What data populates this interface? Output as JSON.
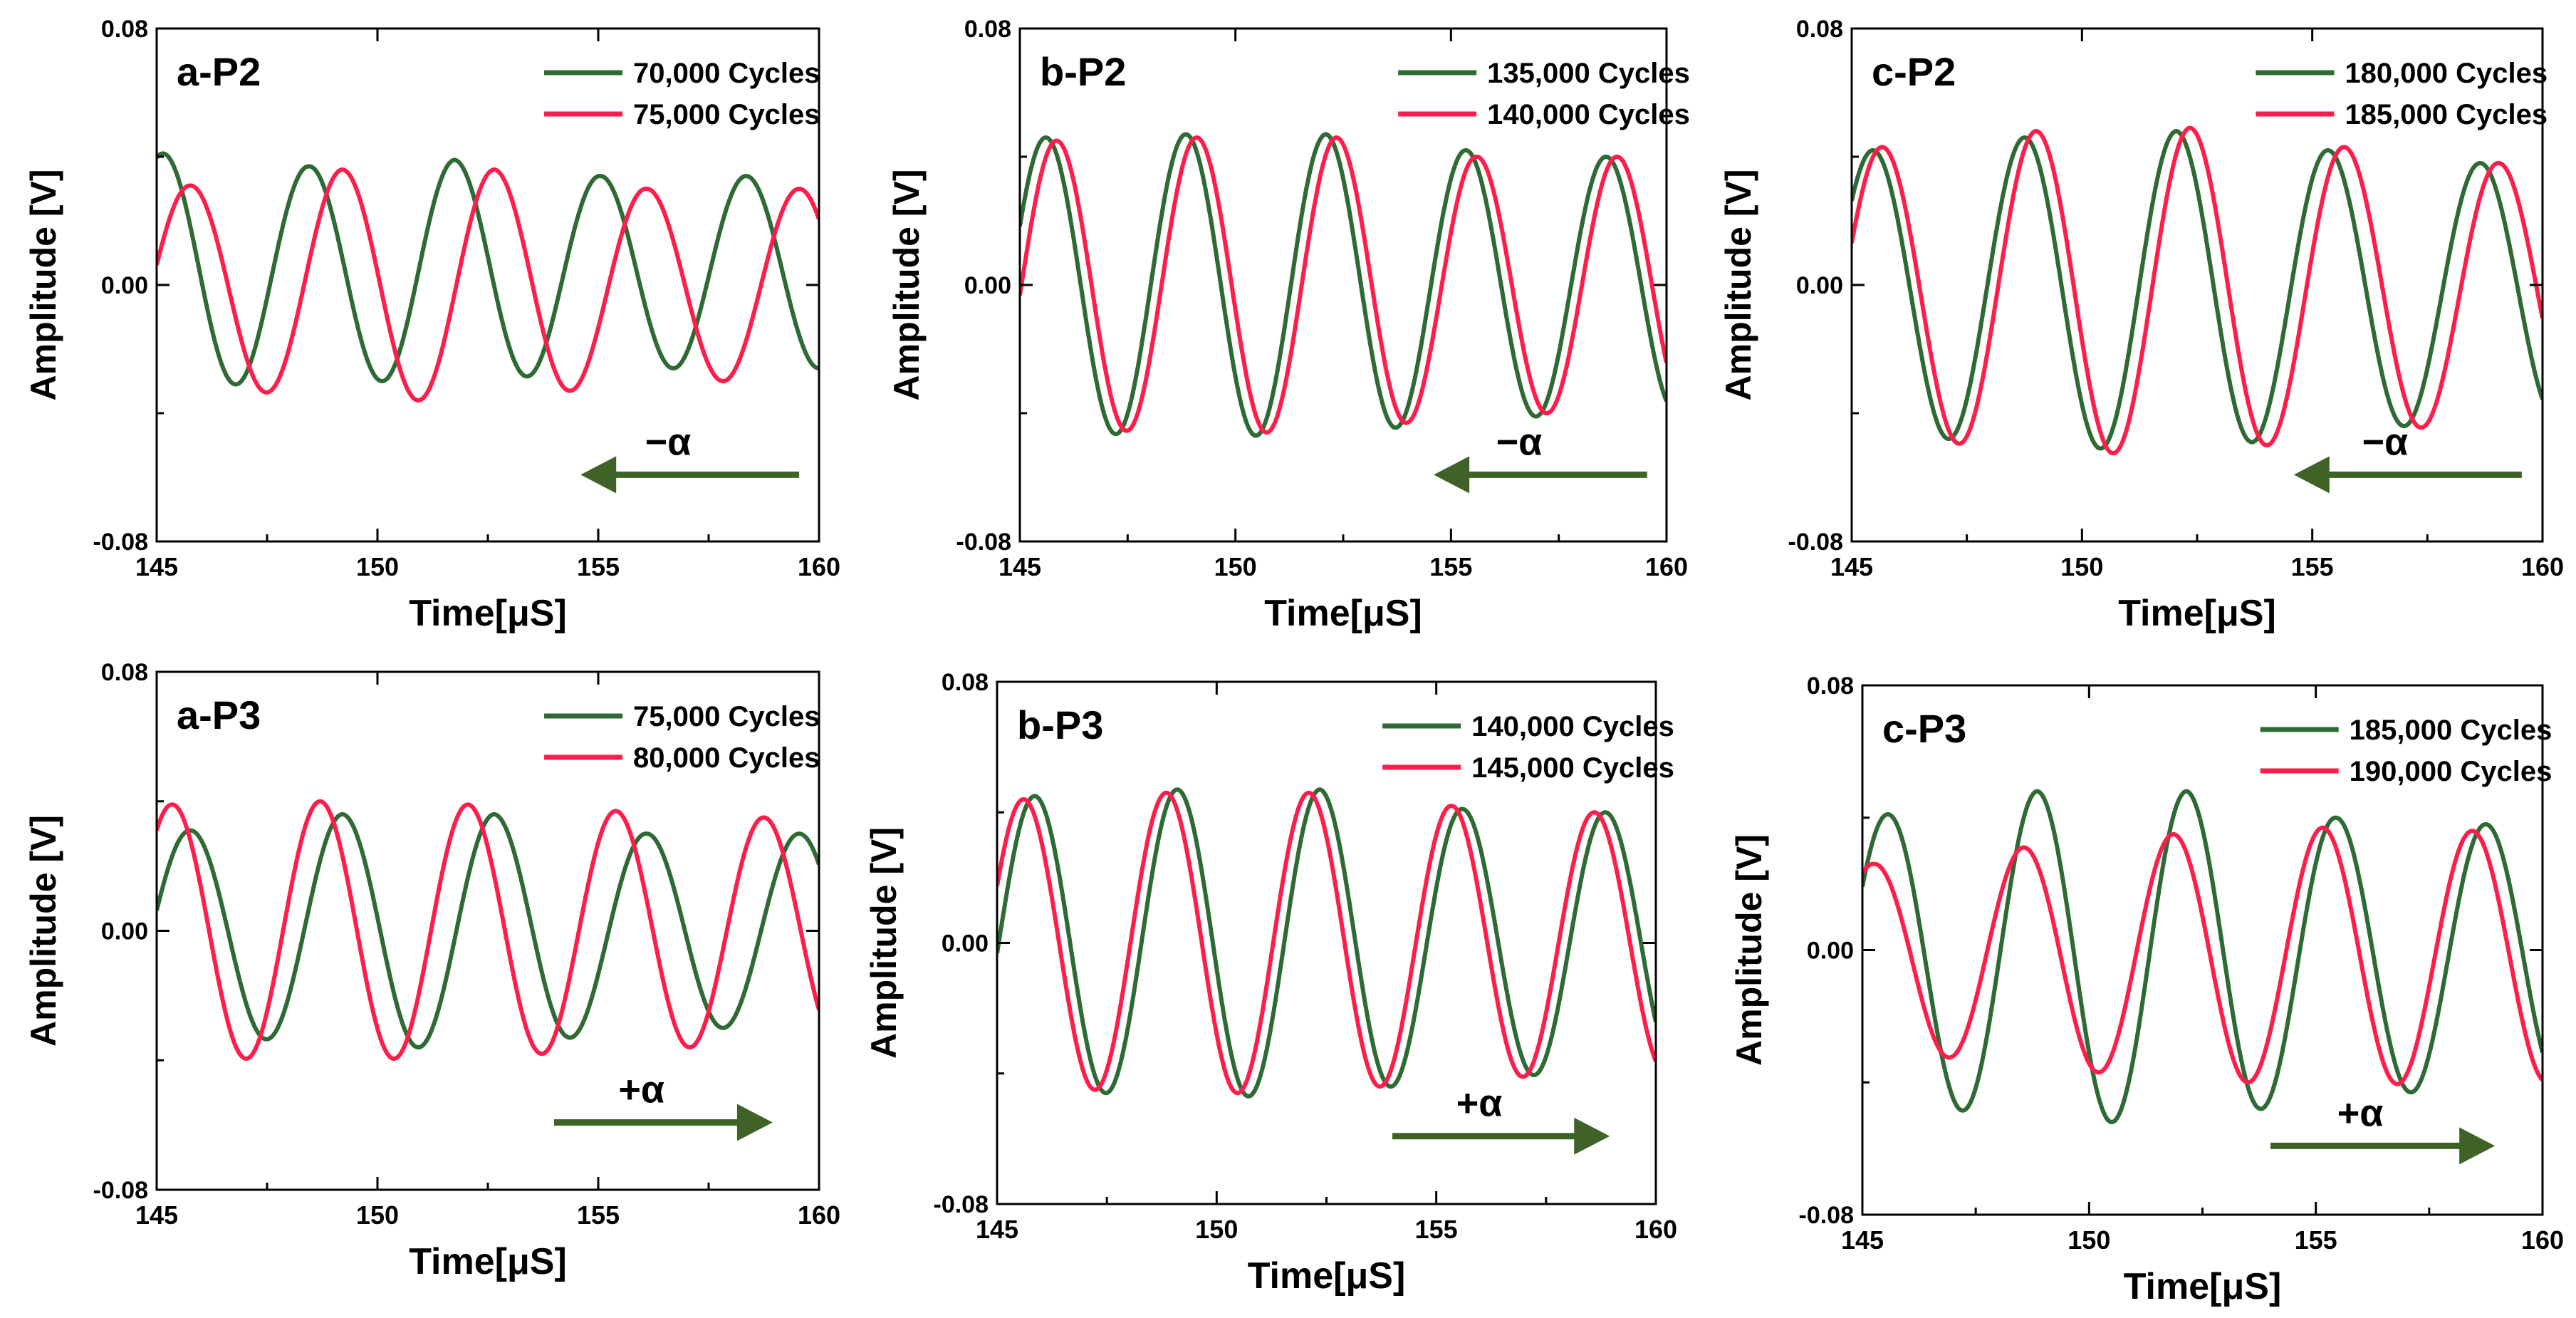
{
  "colors": {
    "green": "#2e6a33",
    "red": "#ff1e4b",
    "arrow": "#3f6226",
    "axis": "#000000"
  },
  "chart_data": [
    {
      "type": "line",
      "panel_label": "a-P2",
      "xlabel": "Time[μS]",
      "ylabel": "Amplitude [V]",
      "xlim": [
        145,
        160
      ],
      "ylim": [
        -0.08,
        0.08
      ],
      "xticks": [
        "145",
        "150",
        "155",
        "160"
      ],
      "yticks": [
        "-0.08",
        "0.00",
        "0.08"
      ],
      "legend": [
        "70,000 Cycles",
        "75,000 Cycles"
      ],
      "annotation": {
        "text": "−α",
        "direction": "left"
      },
      "series": [
        {
          "name": "70,000 Cycles",
          "color": "green",
          "period": 3.3,
          "peak_time": 145.15,
          "amplitude": [
            0.042,
            0.037,
            0.033,
            0.035,
            0.03,
            0.03
          ],
          "offset": 0.004
        },
        {
          "name": "75,000 Cycles",
          "color": "red",
          "period": 3.45,
          "peak_time": 145.75,
          "amplitude": [
            0.03,
            0.031,
            0.036,
            0.036,
            0.03,
            0.03
          ],
          "offset": 0.0
        }
      ]
    },
    {
      "type": "line",
      "panel_label": "b-P2",
      "xlabel": "Time[μS]",
      "ylabel": "Amplitude [V]",
      "xlim": [
        145,
        160
      ],
      "ylim": [
        -0.08,
        0.08
      ],
      "xticks": [
        "145",
        "150",
        "155",
        "160"
      ],
      "yticks": [
        "-0.08",
        "0.00",
        "0.08"
      ],
      "legend": [
        "135,000 Cycles",
        "140,000 Cycles"
      ],
      "annotation": {
        "text": "−α",
        "direction": "left"
      },
      "series": [
        {
          "name": "135,000 Cycles",
          "color": "green",
          "period": 3.25,
          "peak_time": 145.6,
          "amplitude": [
            0.045,
            0.046,
            0.047,
            0.047,
            0.042,
            0.04
          ],
          "offset": 0.0
        },
        {
          "name": "140,000 Cycles",
          "color": "red",
          "period": 3.25,
          "peak_time": 145.85,
          "amplitude": [
            0.043,
            0.045,
            0.046,
            0.046,
            0.04,
            0.04
          ],
          "offset": 0.0
        }
      ]
    },
    {
      "type": "line",
      "panel_label": "c-P2",
      "xlabel": "Time[μS]",
      "ylabel": "Amplitude [V]",
      "xlim": [
        145,
        160
      ],
      "ylim": [
        -0.08,
        0.08
      ],
      "xticks": [
        "145",
        "150",
        "155",
        "160"
      ],
      "yticks": [
        "-0.08",
        "0.00",
        "0.08"
      ],
      "legend": [
        "180,000 Cycles",
        "185,000 Cycles"
      ],
      "annotation": {
        "text": "−α",
        "direction": "left"
      },
      "series": [
        {
          "name": "180,000 Cycles",
          "color": "green",
          "period": 3.3,
          "peak_time": 145.45,
          "amplitude": [
            0.038,
            0.044,
            0.048,
            0.05,
            0.044,
            0.04
          ],
          "offset": -0.002
        },
        {
          "name": "185,000 Cycles",
          "color": "red",
          "period": 3.35,
          "peak_time": 145.65,
          "amplitude": [
            0.039,
            0.045,
            0.05,
            0.051,
            0.045,
            0.04
          ],
          "offset": -0.002
        }
      ]
    },
    {
      "type": "line",
      "panel_label": "a-P3",
      "xlabel": "Time[μS]",
      "ylabel": "Amplitude [V]",
      "xlim": [
        145,
        160
      ],
      "ylim": [
        -0.08,
        0.08
      ],
      "xticks": [
        "145",
        "150",
        "155",
        "160"
      ],
      "yticks": [
        "-0.08",
        "0.00",
        "0.08"
      ],
      "legend": [
        "75,000 Cycles",
        "80,000 Cycles"
      ],
      "annotation": {
        "text": "+α",
        "direction": "right"
      },
      "series": [
        {
          "name": "75,000 Cycles",
          "color": "green",
          "period": 3.45,
          "peak_time": 145.75,
          "amplitude": [
            0.03,
            0.031,
            0.036,
            0.036,
            0.03,
            0.03
          ],
          "offset": 0.0
        },
        {
          "name": "80,000 Cycles",
          "color": "red",
          "period": 3.35,
          "peak_time": 145.35,
          "amplitude": [
            0.041,
            0.039,
            0.04,
            0.039,
            0.037,
            0.035
          ],
          "offset": 0.0
        }
      ]
    },
    {
      "type": "line",
      "panel_label": "b-P3",
      "xlabel": "Time[μS]",
      "ylabel": "Amplitude [V]",
      "xlim": [
        145,
        160
      ],
      "ylim": [
        -0.08,
        0.08
      ],
      "xticks": [
        "145",
        "150",
        "155",
        "160"
      ],
      "yticks": [
        "-0.08",
        "0.00",
        "0.08"
      ],
      "legend": [
        "140,000 Cycles",
        "145,000 Cycles"
      ],
      "annotation": {
        "text": "+α",
        "direction": "right"
      },
      "series": [
        {
          "name": "140,000 Cycles",
          "color": "green",
          "period": 3.25,
          "peak_time": 145.85,
          "amplitude": [
            0.04,
            0.045,
            0.047,
            0.047,
            0.041,
            0.04
          ],
          "offset": 0.0
        },
        {
          "name": "145,000 Cycles",
          "color": "red",
          "period": 3.25,
          "peak_time": 145.6,
          "amplitude": [
            0.042,
            0.044,
            0.046,
            0.046,
            0.042,
            0.04
          ],
          "offset": 0.0
        }
      ]
    },
    {
      "type": "line",
      "panel_label": "c-P3",
      "xlabel": "Time[μS]",
      "ylabel": "Amplitude [V]",
      "xlim": [
        145,
        160
      ],
      "ylim": [
        -0.08,
        0.08
      ],
      "xticks": [
        "145",
        "150",
        "155",
        "160"
      ],
      "yticks": [
        "-0.08",
        "0.00",
        "0.08"
      ],
      "legend": [
        "185,000 Cycles",
        "190,000 Cycles"
      ],
      "annotation": {
        "text": "+α",
        "direction": "right"
      },
      "series": [
        {
          "name": "185,000 Cycles",
          "color": "green",
          "period": 3.3,
          "peak_time": 145.55,
          "amplitude": [
            0.039,
            0.043,
            0.05,
            0.05,
            0.042,
            0.04
          ],
          "offset": -0.002
        },
        {
          "name": "190,000 Cycles",
          "color": "red",
          "period": 3.3,
          "peak_time": 145.25,
          "amplitude": [
            0.033,
            0.028,
            0.033,
            0.037,
            0.039,
            0.038
          ],
          "offset": -0.002
        }
      ]
    }
  ]
}
